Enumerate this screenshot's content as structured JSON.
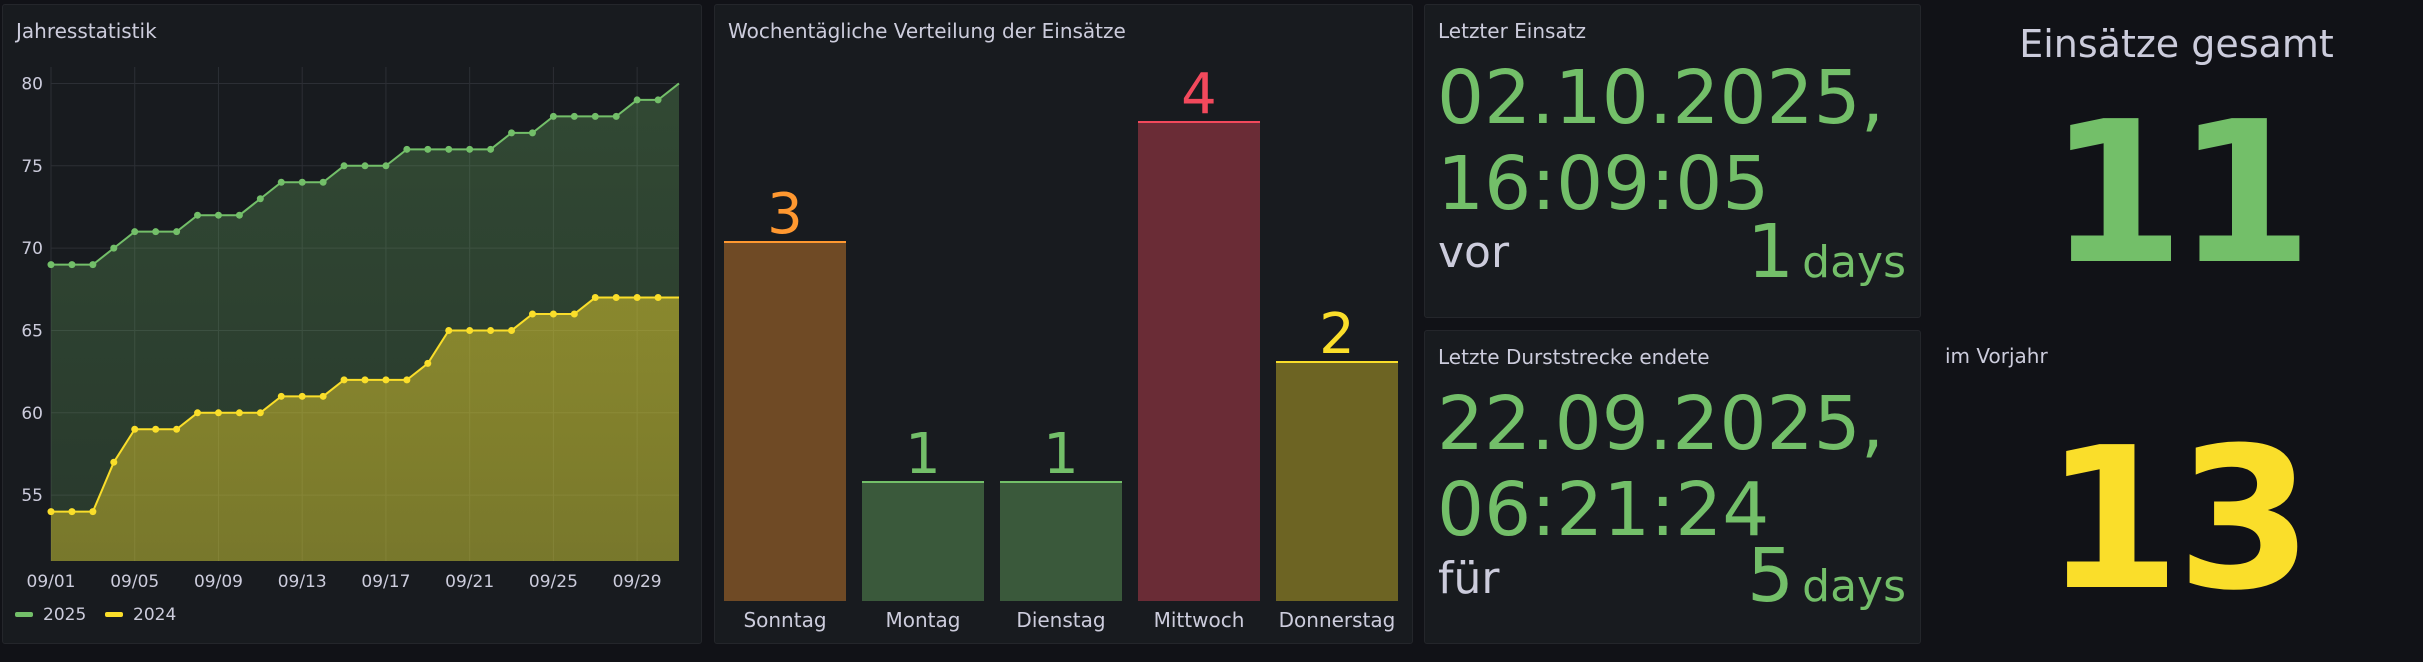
{
  "colors": {
    "green": "#73bf69",
    "yellow": "#fade2a",
    "orange": "#ff9830",
    "red": "#f2495c",
    "background": "#111217",
    "panel": "#181b1f",
    "text": "#ccccdc"
  },
  "panels": {
    "jahresstatistik": {
      "title": "Jahresstatistik"
    },
    "weekday": {
      "title": "Wochentägliche Verteilung der Einsätze"
    },
    "letzter_einsatz": {
      "title": "Letzter Einsatz",
      "line1": "02.10.2025,",
      "line2": "16:09:05",
      "prefix": "vor",
      "value": "1",
      "unit": "days"
    },
    "durststrecke": {
      "title": "Letzte Durststrecke endete",
      "line1": "22.09.2025,",
      "line2": "06:21:24",
      "prefix": "für",
      "value": "5",
      "unit": "days"
    },
    "gesamt": {
      "title": "Einsätze gesamt",
      "value": "11"
    },
    "vorjahr": {
      "title": "im Vorjahr",
      "value": "13"
    }
  },
  "chart_data": [
    {
      "type": "area",
      "title": "Jahresstatistik",
      "x": [
        "09/01",
        "09/02",
        "09/03",
        "09/04",
        "09/05",
        "09/06",
        "09/07",
        "09/08",
        "09/09",
        "09/10",
        "09/11",
        "09/12",
        "09/13",
        "09/14",
        "09/15",
        "09/16",
        "09/17",
        "09/18",
        "09/19",
        "09/20",
        "09/21",
        "09/22",
        "09/23",
        "09/24",
        "09/25",
        "09/26",
        "09/27",
        "09/28",
        "09/29",
        "09/30",
        "10/01"
      ],
      "x_ticks": [
        "09/01",
        "09/05",
        "09/09",
        "09/13",
        "09/17",
        "09/21",
        "09/25",
        "09/29"
      ],
      "ylim": [
        51,
        81
      ],
      "y_ticks": [
        55,
        60,
        65,
        70,
        75,
        80
      ],
      "grid": true,
      "legend": "bottom-left",
      "series": [
        {
          "name": "2025",
          "color": "#73bf69",
          "values": [
            69,
            69,
            69,
            70,
            71,
            71,
            71,
            72,
            72,
            72,
            73,
            74,
            74,
            74,
            75,
            75,
            75,
            76,
            76,
            76,
            76,
            76,
            77,
            77,
            78,
            78,
            78,
            78,
            79,
            79,
            80
          ]
        },
        {
          "name": "2024",
          "color": "#fade2a",
          "values": [
            54,
            54,
            54,
            57,
            59,
            59,
            59,
            60,
            60,
            60,
            60,
            61,
            61,
            61,
            62,
            62,
            62,
            62,
            63,
            65,
            65,
            65,
            65,
            66,
            66,
            66,
            67,
            67,
            67,
            67,
            67
          ]
        }
      ]
    },
    {
      "type": "bar",
      "title": "Wochentägliche Verteilung der Einsätze",
      "categories": [
        "Sonntag",
        "Montag",
        "Dienstag",
        "Mittwoch",
        "Donnerstag"
      ],
      "values": [
        3,
        1,
        1,
        4,
        2
      ],
      "colors": [
        "#ff9830",
        "#73bf69",
        "#73bf69",
        "#f2495c",
        "#fade2a"
      ]
    }
  ]
}
